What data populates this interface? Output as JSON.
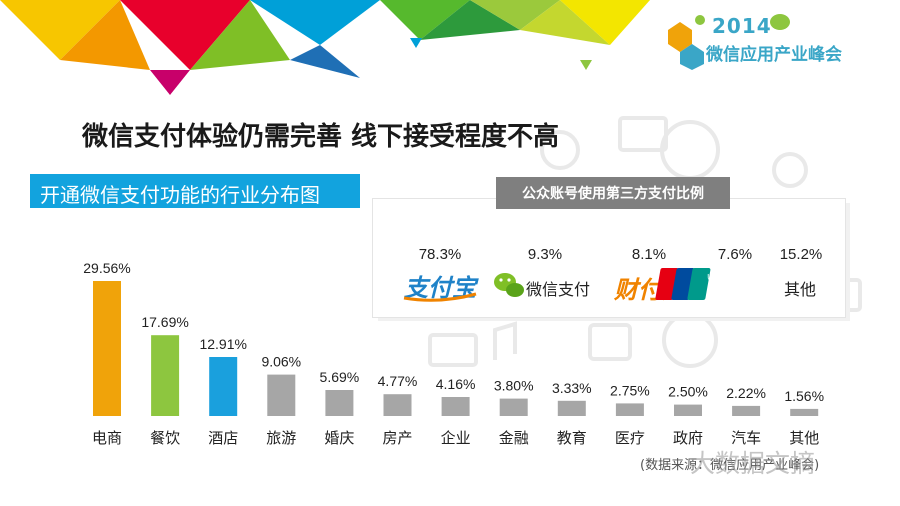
{
  "header": {
    "logo_year": "2014",
    "logo_text": "微信应用产业峰会"
  },
  "headline": "微信支付体验仍需完善 线下接受程度不高",
  "colors": {
    "accent_blue": "#12a3de",
    "bar_orange": "#f0a30a",
    "bar_green": "#8dc63f",
    "bar_blue": "#1aa0dd",
    "bar_gray": "#a6a6a6",
    "inset_header": "#7f7f7f"
  },
  "chart_data": {
    "type": "bar",
    "title": "开通微信支付功能的行业分布图",
    "categories": [
      "电商",
      "餐饮",
      "酒店",
      "旅游",
      "婚庆",
      "房产",
      "企业",
      "金融",
      "教育",
      "医疗",
      "政府",
      "汽车",
      "其他"
    ],
    "values": [
      29.56,
      17.69,
      12.91,
      9.06,
      5.69,
      4.77,
      4.16,
      3.8,
      3.33,
      2.75,
      2.5,
      2.22,
      1.56
    ],
    "value_labels": [
      "29.56%",
      "17.69%",
      "12.91%",
      "9.06%",
      "5.69%",
      "4.77%",
      "4.16%",
      "3.80%",
      "3.33%",
      "2.75%",
      "2.50%",
      "2.22%",
      "1.56%"
    ],
    "unit": "%",
    "ylim": [
      0,
      30
    ],
    "grid": false,
    "legend": "none",
    "bar_colors": [
      "#f0a30a",
      "#8dc63f",
      "#1aa0dd",
      "#a6a6a6",
      "#a6a6a6",
      "#a6a6a6",
      "#a6a6a6",
      "#a6a6a6",
      "#a6a6a6",
      "#a6a6a6",
      "#a6a6a6",
      "#a6a6a6",
      "#a6a6a6"
    ]
  },
  "inset": {
    "title": "公众账号使用第三方支付比例",
    "payments": [
      {
        "pct": "78.3%",
        "name": "支付宝",
        "icon": "alipay-logo"
      },
      {
        "pct": "9.3%",
        "name": "微信支付",
        "icon": "wechat-icon"
      },
      {
        "pct": "8.1%",
        "name": "财付通",
        "icon": "tenpay-logo"
      },
      {
        "pct": "7.6%",
        "name": "UnionPay 银联",
        "icon": "unionpay-logo"
      },
      {
        "pct": "15.2%",
        "name": "其他",
        "icon": ""
      }
    ]
  },
  "footer": {
    "source": "(数据来源：微信应用产业峰会)",
    "watermark": "大数据文摘"
  }
}
